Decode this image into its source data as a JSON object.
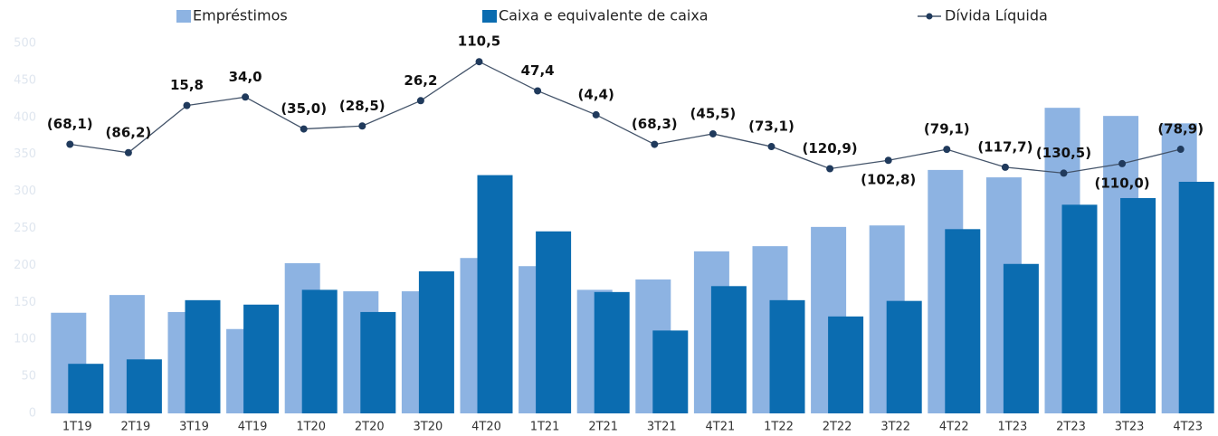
{
  "chart_data": {
    "type": "bar_line",
    "categories": [
      "1T19",
      "2T19",
      "3T19",
      "4T19",
      "1T20",
      "2T20",
      "3T20",
      "4T20",
      "1T21",
      "2T21",
      "3T21",
      "4T21",
      "1T22",
      "2T22",
      "3T22",
      "4T22",
      "1T23",
      "2T23",
      "3T23",
      "4T23"
    ],
    "series": [
      {
        "name": "Empréstimos",
        "type": "bar",
        "color": "#8db3e2",
        "values": [
          136,
          160,
          137,
          114,
          203,
          165,
          165,
          210,
          199,
          167,
          181,
          219,
          226,
          252,
          254,
          329,
          319,
          413,
          402,
          392
        ]
      },
      {
        "name": "Caixa e equivalente de caixa",
        "type": "bar",
        "color": "#0b6cb0",
        "values": [
          67,
          73,
          153,
          147,
          167,
          137,
          192,
          322,
          246,
          164,
          112,
          172,
          153,
          131,
          152,
          249,
          202,
          282,
          291,
          313
        ]
      },
      {
        "name": "Dívida Líquida",
        "type": "line",
        "axis": "y2",
        "color": "#44546a",
        "marker_color": "#203a5c",
        "values": [
          -68.1,
          -86.2,
          15.8,
          34.0,
          -35.0,
          -28.5,
          26.2,
          110.5,
          47.4,
          -4.4,
          -68.3,
          -45.5,
          -73.1,
          -120.9,
          -102.8,
          -79.1,
          -117.7,
          -130.5,
          -110.0,
          -78.9
        ],
        "value_labels": [
          "(68,1)",
          "(86,2)",
          "15,8",
          "34,0",
          "(35,0)",
          "(28,5)",
          "26,2",
          "110,5",
          "47,4",
          "(4,4)",
          "(68,3)",
          "(45,5)",
          "(73,1)",
          "(120,9)",
          "(102,8)",
          "(79,1)",
          "(117,7)",
          "(130,5)",
          "(110,0)",
          "(78,9)"
        ]
      }
    ],
    "ylim": [
      0,
      500
    ],
    "yticks": [
      0,
      50,
      100,
      150,
      200,
      250,
      300,
      350,
      400,
      450,
      500
    ],
    "y2lim": [
      -650,
      150
    ],
    "legend": "top"
  }
}
